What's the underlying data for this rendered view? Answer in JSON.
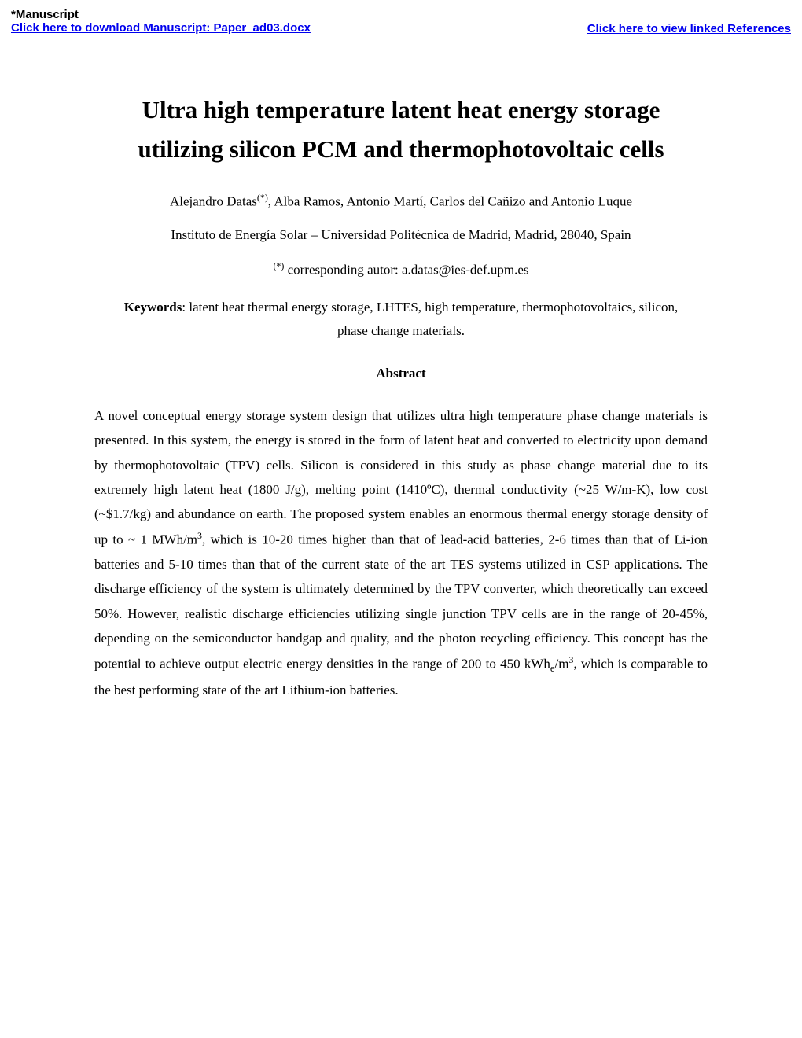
{
  "header": {
    "manuscript_label": "*Manuscript",
    "download_link": "Click here to download Manuscript: Paper_ad03.docx",
    "references_link": "Click here to view linked References"
  },
  "title": {
    "line1": "Ultra high temperature latent heat energy storage",
    "line2": "utilizing silicon PCM and thermophotovoltaic cells"
  },
  "authors": {
    "first_author": "Alejandro Datas",
    "first_author_mark": "(*)",
    "rest": ", Alba Ramos, Antonio Martí, Carlos del Cañizo and Antonio Luque"
  },
  "affiliation": {
    "prefix": "Instituto",
    "rest": " de Energía Solar – Universidad Politécnica de Madrid, Madrid, 28040, Spain"
  },
  "corresponding": {
    "mark": "(*)",
    "text": " corresponding autor: a.datas@ies-def.upm.es"
  },
  "keywords": {
    "label": "Keywords",
    "text": ": latent heat thermal energy storage, LHTES, high temperature, thermophotovoltaics, silicon, phase change materials."
  },
  "abstract": {
    "heading": "Abstract",
    "p1a": "A novel conceptual energy storage system design that utilizes ultra high temperature phase change materials is presented. In this system, the energy is stored in the form of latent heat and converted to electricity upon demand by thermophotovoltaic (TPV) cells. Silicon is considered in this study as phase change material due to its extremely high latent heat (1800 J/g), melting point (1410ºC), thermal conductivity (~25 W/m-K), low cost (~$1.7/kg) and abundance on earth. The proposed system enables an enormous thermal energy storage density of up to ~ 1 MWh/m",
    "p1_sup1": "3",
    "p1b": ", which is 10-20 times higher than that of lead-acid batteries, 2-6 times than that of Li-ion batteries and 5-10 times than that of the current state of the art TES systems utilized in CSP applications. The discharge efficiency of the system is ultimately determined by the TPV converter, which theoretically can exceed 50%. However, realistic discharge efficiencies utilizing single junction TPV cells are in the range of 20-45%, depending on the semiconductor bandgap and quality, and the photon recycling efficiency. This concept has the potential to achieve output electric energy densities in the range of 200 to 450 kWh",
    "p1_sub": "e",
    "p1c": "/m",
    "p1_sup2": "3",
    "p1d": ", which is comparable to the best performing state of the art Lithium-ion batteries."
  },
  "colors": {
    "link": "#0000ee",
    "text": "#000000",
    "background": "#ffffff"
  }
}
